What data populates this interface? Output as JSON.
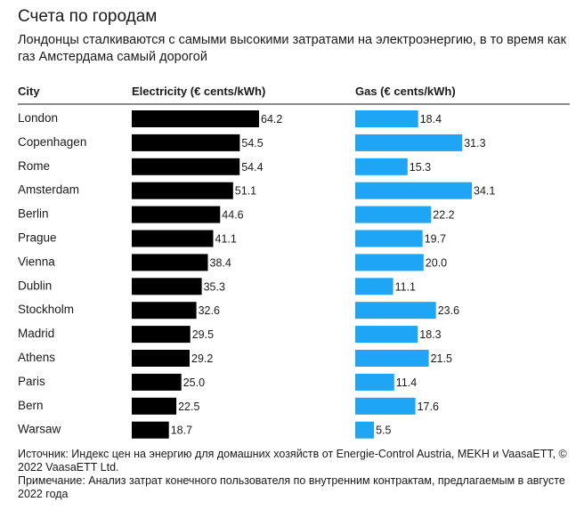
{
  "header": {
    "title": "Счета по городам",
    "subtitle": "Лондонцы сталкиваются с самыми высокими затратами на электроэнергию, в то время как газ Амстердама самый дорогой"
  },
  "footer": {
    "source": "Источник: Индекс цен на энергию для домашних хозяйств от Energie-Control Austria, MEKH и VaasaETT, © 2022 VaasaETT Ltd.",
    "note": "Примечание: Анализ затрат конечного пользователя по внутренним контрактам, предлагаемым в августе 2022 года"
  },
  "colors": {
    "electricity": "#000000",
    "gas": "#1ea5f5"
  },
  "chart_data": {
    "type": "bar",
    "orientation": "horizontal",
    "title": "Счета по городам",
    "subtitle": "Лондонцы сталкиваются с самыми высокими затратами на электроэнергию, в то время как газ Амстердама самый дорогой",
    "category_header": "City",
    "categories": [
      "London",
      "Copenhagen",
      "Rome",
      "Amsterdam",
      "Berlin",
      "Prague",
      "Vienna",
      "Dublin",
      "Stockholm",
      "Madrid",
      "Athens",
      "Paris",
      "Bern",
      "Warsaw"
    ],
    "series": [
      {
        "name": "Electricity (€ cents/kWh)",
        "values": [
          64.2,
          54.5,
          54.4,
          51.1,
          44.6,
          41.1,
          38.4,
          35.3,
          32.6,
          29.5,
          29.2,
          25.0,
          22.5,
          18.7
        ],
        "labels": [
          "64.2",
          "54.5",
          "54.4",
          "51.1",
          "44.6",
          "41.1",
          "38.4",
          "35.3",
          "32.6",
          "29.5",
          "29.2",
          "25.0",
          "22.5",
          "18.7"
        ]
      },
      {
        "name": "Gas (€ cents/kWh)",
        "values": [
          18.4,
          31.3,
          15.3,
          34.1,
          22.2,
          19.7,
          20.0,
          11.1,
          23.6,
          18.3,
          21.5,
          11.4,
          17.6,
          5.5
        ],
        "labels": [
          "18.4",
          "31.3",
          "15.3",
          "34.1",
          "22.2",
          "19.7",
          "20.0",
          "11.1",
          "23.6",
          "18.3",
          "21.5",
          "11.4",
          "17.6",
          "5.5"
        ]
      }
    ]
  }
}
